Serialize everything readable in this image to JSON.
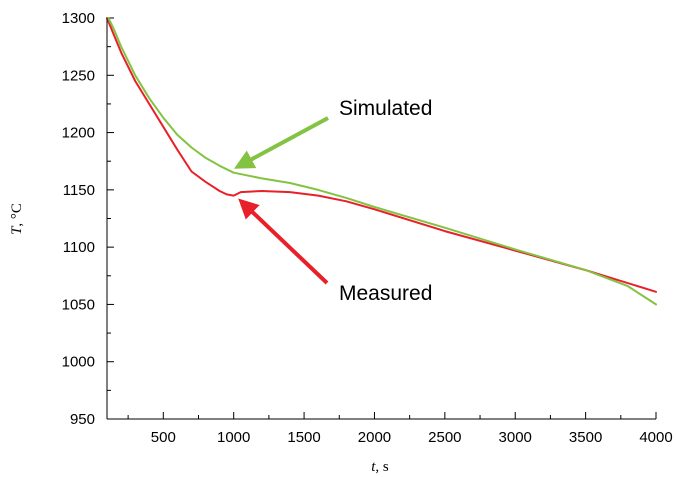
{
  "chart_data": {
    "type": "line",
    "title": "",
    "xlabel": "t, s",
    "xlabel_var": "t",
    "xlabel_unit": ", s",
    "ylabel": "T, °C",
    "ylabel_var": "T",
    "ylabel_unit": ", °C",
    "xlim": [
      100,
      4000
    ],
    "ylim": [
      950,
      1300
    ],
    "x_ticks": [
      500,
      1000,
      1500,
      2000,
      2500,
      3000,
      3500,
      4000
    ],
    "x_minor_ticks": [
      250,
      750,
      1250,
      1750,
      2250,
      2750,
      3250,
      3750
    ],
    "y_ticks": [
      950,
      1000,
      1050,
      1100,
      1150,
      1200,
      1250,
      1300
    ],
    "y_minor_ticks": [
      975,
      1025,
      1075,
      1125,
      1175,
      1225,
      1275
    ],
    "grid": false,
    "legend": "none",
    "series": [
      {
        "name": "Measured",
        "color": "#e8202a",
        "points": [
          [
            100,
            1300
          ],
          [
            150,
            1285
          ],
          [
            200,
            1270
          ],
          [
            300,
            1245
          ],
          [
            400,
            1225
          ],
          [
            500,
            1205
          ],
          [
            600,
            1185
          ],
          [
            700,
            1166
          ],
          [
            800,
            1157
          ],
          [
            900,
            1149
          ],
          [
            950,
            1146
          ],
          [
            1000,
            1145
          ],
          [
            1050,
            1148
          ],
          [
            1200,
            1149
          ],
          [
            1400,
            1148
          ],
          [
            1600,
            1145
          ],
          [
            1800,
            1140
          ],
          [
            2000,
            1133
          ],
          [
            2500,
            1114
          ],
          [
            3000,
            1097
          ],
          [
            3500,
            1080
          ],
          [
            4000,
            1061
          ]
        ]
      },
      {
        "name": "Simulated",
        "color": "#83c341",
        "points": [
          [
            110,
            1300
          ],
          [
            150,
            1290
          ],
          [
            200,
            1275
          ],
          [
            300,
            1250
          ],
          [
            400,
            1230
          ],
          [
            500,
            1213
          ],
          [
            600,
            1198
          ],
          [
            700,
            1187
          ],
          [
            800,
            1178
          ],
          [
            900,
            1171
          ],
          [
            1000,
            1165
          ],
          [
            1200,
            1160
          ],
          [
            1400,
            1156
          ],
          [
            1600,
            1150
          ],
          [
            1800,
            1143
          ],
          [
            2000,
            1135
          ],
          [
            2500,
            1117
          ],
          [
            3000,
            1098
          ],
          [
            3500,
            1080
          ],
          [
            3800,
            1066
          ],
          [
            4000,
            1050
          ]
        ]
      }
    ],
    "annotations": [
      {
        "text": "Simulated",
        "color": "#83c341",
        "target": [
          1000,
          1165
        ]
      },
      {
        "text": "Measured",
        "color": "#e8202a",
        "target": [
          1000,
          1148
        ]
      }
    ]
  }
}
